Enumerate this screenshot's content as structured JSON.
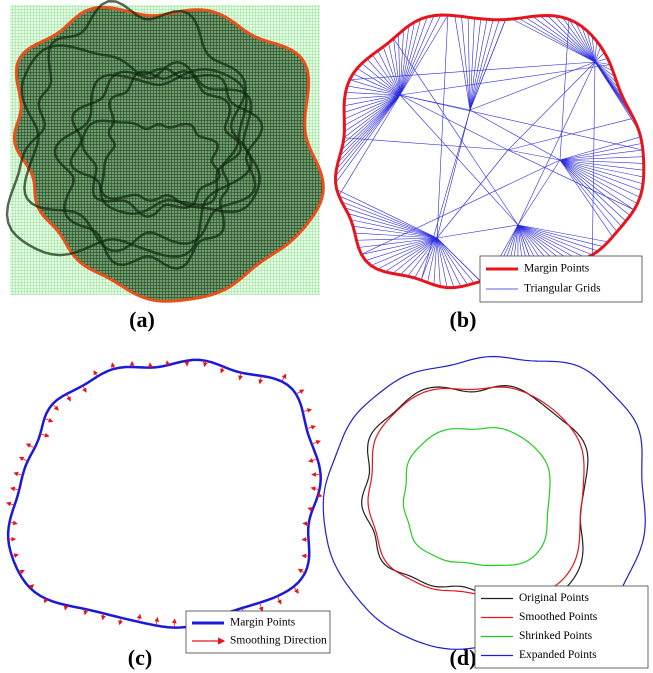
{
  "panels": [
    {
      "label": "(a)"
    },
    {
      "label": "(b)",
      "legend": [
        {
          "label": "Margin Points",
          "color": "#e8141c"
        },
        {
          "label": "Triangular Grids",
          "color": "#2a2ae0"
        }
      ]
    },
    {
      "label": "(c)",
      "legend": [
        {
          "label": "Margin Points",
          "color": "#1a1ad8"
        },
        {
          "label": "Smoothing Direction",
          "color": "#e8141c"
        }
      ]
    },
    {
      "label": "(d)",
      "legend": [
        {
          "label": "Original Points",
          "color": "#222222"
        },
        {
          "label": "Smoothed Points",
          "color": "#e8141c"
        },
        {
          "label": "Shrinked Points",
          "color": "#22cc22"
        },
        {
          "label": "Expanded Points",
          "color": "#2020d0"
        }
      ]
    }
  ]
}
